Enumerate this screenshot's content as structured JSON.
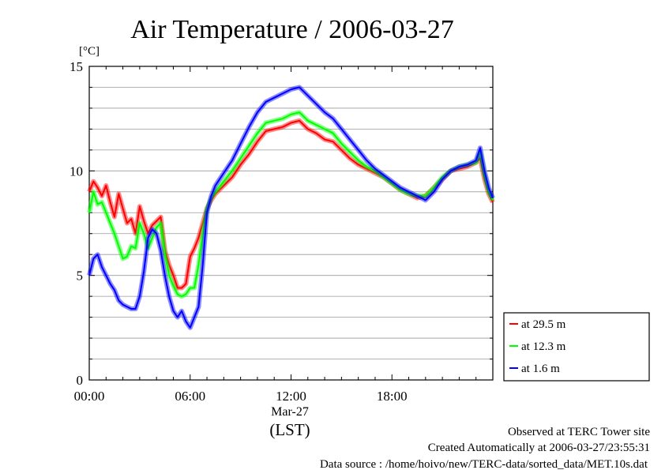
{
  "chart_data": {
    "type": "line",
    "title": "Air Temperature / 2006-03-27",
    "ylabel": "[°C]",
    "ylim": [
      0,
      15
    ],
    "yticks": [
      0,
      5,
      10,
      15
    ],
    "yticklabels": [
      "0",
      "5",
      "10",
      "15"
    ],
    "xlim": [
      0,
      24
    ],
    "xticks": [
      0,
      6,
      12,
      18
    ],
    "xticklabels": [
      "00:00",
      "06:00",
      "12:00",
      "18:00"
    ],
    "xdate_label": "Mar-27",
    "xlabel": "(LST)",
    "grid": true,
    "legend_position": "right",
    "series": [
      {
        "name": "at 29.5 m",
        "color": "#ff0000",
        "x": [
          0,
          0.25,
          0.5,
          0.75,
          1,
          1.25,
          1.5,
          1.75,
          2,
          2.25,
          2.5,
          2.75,
          3,
          3.25,
          3.5,
          3.75,
          4,
          4.25,
          4.5,
          4.75,
          5,
          5.25,
          5.5,
          5.75,
          6,
          6.25,
          6.5,
          6.75,
          7,
          7.25,
          7.5,
          8,
          8.5,
          9,
          9.5,
          10,
          10.5,
          11,
          11.5,
          12,
          12.5,
          13,
          13.5,
          14,
          14.5,
          15,
          15.5,
          16,
          16.5,
          17,
          17.5,
          18,
          18.5,
          19,
          19.5,
          20,
          20.5,
          21,
          21.5,
          22,
          22.5,
          23,
          23.25,
          23.5,
          23.75,
          24
        ],
        "values": [
          9.0,
          9.5,
          9.2,
          8.8,
          9.3,
          8.5,
          7.8,
          8.9,
          8.2,
          7.5,
          7.7,
          7.0,
          8.3,
          7.6,
          7.0,
          7.4,
          7.6,
          7.8,
          6.2,
          5.5,
          5.0,
          4.4,
          4.4,
          4.6,
          5.9,
          6.3,
          6.8,
          7.5,
          8.2,
          8.6,
          8.9,
          9.3,
          9.7,
          10.3,
          10.8,
          11.4,
          11.9,
          12.0,
          12.1,
          12.3,
          12.4,
          12.0,
          11.8,
          11.5,
          11.4,
          11.0,
          10.6,
          10.3,
          10.1,
          9.9,
          9.7,
          9.4,
          9.1,
          8.9,
          8.7,
          8.8,
          9.2,
          9.6,
          10.0,
          10.1,
          10.2,
          10.4,
          10.6,
          9.6,
          8.9,
          8.5
        ]
      },
      {
        "name": "at 12.3 m",
        "color": "#00ff00",
        "x": [
          0,
          0.25,
          0.5,
          0.75,
          1,
          1.25,
          1.5,
          1.75,
          2,
          2.25,
          2.5,
          2.75,
          3,
          3.25,
          3.5,
          3.75,
          4,
          4.25,
          4.5,
          4.75,
          5,
          5.25,
          5.5,
          5.75,
          6,
          6.25,
          6.5,
          6.75,
          7,
          7.25,
          7.5,
          8,
          8.5,
          9,
          9.5,
          10,
          10.5,
          11,
          11.5,
          12,
          12.5,
          13,
          13.5,
          14,
          14.5,
          15,
          15.5,
          16,
          16.5,
          17,
          17.5,
          18,
          18.5,
          19,
          19.5,
          20,
          20.5,
          21,
          21.5,
          22,
          22.5,
          23,
          23.25,
          23.5,
          23.75,
          24
        ],
        "values": [
          8.0,
          9.0,
          8.4,
          8.5,
          8.0,
          7.5,
          7.0,
          6.4,
          5.8,
          5.9,
          6.4,
          6.3,
          7.5,
          7.0,
          6.3,
          6.8,
          7.3,
          7.5,
          6.0,
          5.0,
          4.5,
          4.1,
          4.0,
          4.1,
          4.4,
          4.4,
          5.5,
          7.0,
          8.2,
          8.7,
          9.0,
          9.5,
          10.0,
          10.6,
          11.2,
          11.8,
          12.3,
          12.4,
          12.5,
          12.7,
          12.8,
          12.4,
          12.2,
          12.0,
          11.8,
          11.3,
          10.9,
          10.5,
          10.2,
          10.0,
          9.7,
          9.4,
          9.1,
          8.9,
          8.8,
          8.8,
          9.2,
          9.7,
          10.0,
          10.2,
          10.3,
          10.4,
          10.9,
          9.8,
          9.0,
          8.6
        ]
      },
      {
        "name": "at 1.6 m",
        "color": "#0000ff",
        "x": [
          0,
          0.25,
          0.5,
          0.75,
          1,
          1.25,
          1.5,
          1.75,
          2,
          2.25,
          2.5,
          2.75,
          3,
          3.25,
          3.5,
          3.75,
          4,
          4.25,
          4.5,
          4.75,
          5,
          5.25,
          5.5,
          5.75,
          6,
          6.25,
          6.5,
          6.75,
          7,
          7.25,
          7.5,
          8,
          8.5,
          9,
          9.5,
          10,
          10.5,
          11,
          11.5,
          12,
          12.5,
          13,
          13.5,
          14,
          14.5,
          15,
          15.5,
          16,
          16.5,
          17,
          17.5,
          18,
          18.5,
          19,
          19.5,
          20,
          20.5,
          21,
          21.5,
          22,
          22.5,
          23,
          23.25,
          23.5,
          23.75,
          24
        ],
        "values": [
          5.0,
          5.8,
          6.0,
          5.4,
          5.0,
          4.6,
          4.3,
          3.8,
          3.6,
          3.5,
          3.4,
          3.4,
          4.0,
          5.2,
          6.8,
          7.2,
          7.0,
          6.2,
          5.0,
          4.0,
          3.3,
          3.0,
          3.3,
          2.8,
          2.5,
          3.0,
          3.5,
          5.5,
          8.0,
          8.8,
          9.3,
          9.9,
          10.5,
          11.3,
          12.1,
          12.8,
          13.3,
          13.5,
          13.7,
          13.9,
          14.0,
          13.6,
          13.2,
          12.8,
          12.5,
          12.0,
          11.5,
          11.0,
          10.5,
          10.1,
          9.8,
          9.5,
          9.2,
          9.0,
          8.8,
          8.6,
          9.0,
          9.6,
          10.0,
          10.2,
          10.3,
          10.5,
          11.1,
          10.0,
          9.2,
          8.7
        ]
      }
    ]
  },
  "footer": {
    "site": "Observed at TERC Tower site",
    "created": "Created Automatically at 2006-03-27/23:55:31",
    "source": "Data source : /home/hoivo/new/TERC-data/sorted_data/MET.10s.dat"
  }
}
